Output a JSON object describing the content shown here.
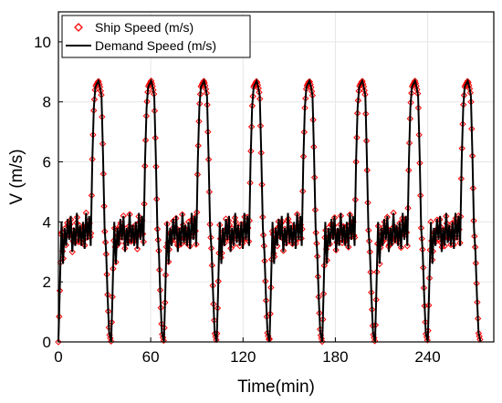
{
  "chart_data": {
    "type": "line",
    "title": "",
    "xlabel": "Time(min)",
    "ylabel": "V (m/s)",
    "xlim": [
      0,
      283
    ],
    "ylim": [
      0,
      11
    ],
    "x_ticks": [
      0,
      60,
      120,
      180,
      240
    ],
    "y_ticks": [
      0,
      2,
      4,
      6,
      8,
      10
    ],
    "grid": true,
    "legend_position": "top-left",
    "cycle_period_min": 34.3,
    "cycle_count": 8,
    "cycle_profile": {
      "t": [
        0,
        0.8,
        2.0,
        3.0,
        4.0,
        5.0,
        6.0,
        7.0,
        8.0,
        9.0,
        10.0,
        11.0,
        12.0,
        13.0,
        14.0,
        15.0,
        16.0,
        17.0,
        18.0,
        19.0,
        20.0,
        21.0,
        22.0,
        23.0,
        24.0,
        25.0,
        26.0,
        27.0,
        28.0,
        29.0,
        30.0,
        31.0,
        32.0,
        33.0,
        34.3
      ],
      "v": [
        0.0,
        1.5,
        4.0,
        2.6,
        3.8,
        3.2,
        4.1,
        3.4,
        4.2,
        3.0,
        3.8,
        3.2,
        4.3,
        3.3,
        3.9,
        3.2,
        4.0,
        3.1,
        4.3,
        3.4,
        4.2,
        3.2,
        6.0,
        7.8,
        8.5,
        8.6,
        8.7,
        8.5,
        8.2,
        6.2,
        3.8,
        3.0,
        1.5,
        0.3,
        0.0
      ]
    },
    "series": [
      {
        "name": "Ship Speed (m/s)",
        "style": "markers",
        "marker": "diamond",
        "color": "#ff0000"
      },
      {
        "name": "Demand Speed (m/s)",
        "style": "line",
        "color": "#000000"
      }
    ]
  }
}
